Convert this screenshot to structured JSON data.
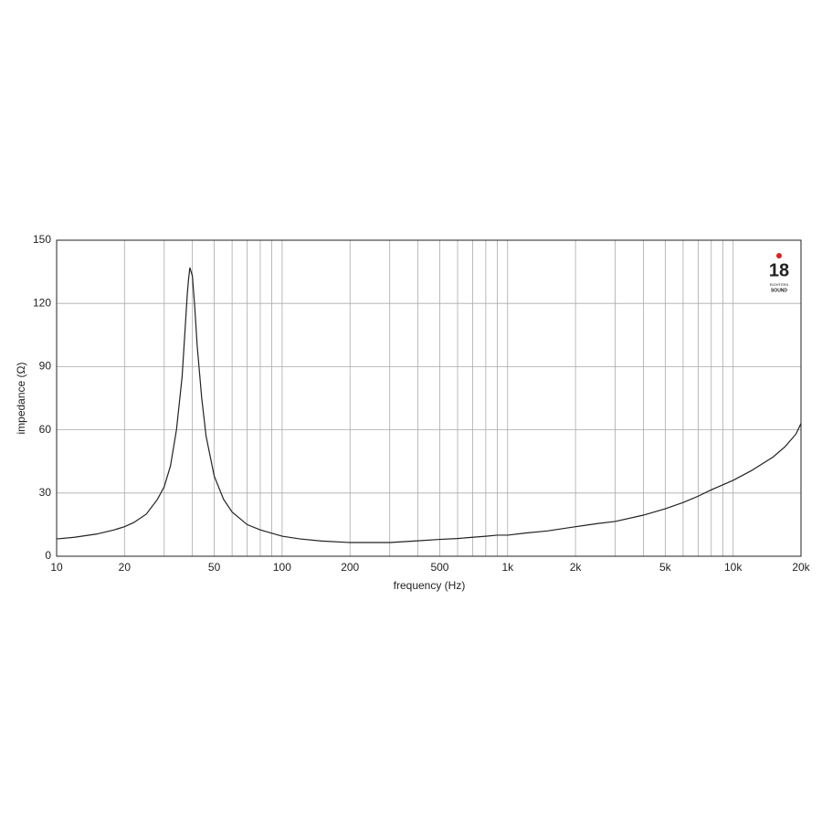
{
  "chart_data": {
    "type": "line",
    "x_label": "frequency (Hz)",
    "y_label": "impedance (Ω)",
    "x_scale": "log",
    "xlim": [
      10,
      20000
    ],
    "ylim": [
      0,
      150
    ],
    "xticks": [
      10,
      20,
      50,
      100,
      200,
      500,
      {
        "value": 1000,
        "label": "1k"
      },
      {
        "value": 2000,
        "label": "2k"
      },
      {
        "value": 5000,
        "label": "5k"
      },
      {
        "value": 10000,
        "label": "10k"
      },
      {
        "value": 20000,
        "label": "20k"
      }
    ],
    "x_minor_grid": [
      30,
      40,
      60,
      70,
      80,
      90,
      300,
      400,
      600,
      700,
      800,
      900,
      3000,
      4000,
      6000,
      7000,
      8000,
      9000
    ],
    "yticks": [
      0,
      30,
      60,
      90,
      120,
      150
    ],
    "grid": true,
    "logo": {
      "number": "18",
      "line1": "EIGHTEEN",
      "line2": "SOUND"
    },
    "x": [
      10,
      12,
      15,
      18,
      20,
      22,
      25,
      28,
      30,
      32,
      34,
      36,
      37,
      38,
      38.5,
      39,
      40,
      41,
      42,
      44,
      46,
      50,
      55,
      60,
      70,
      80,
      100,
      120,
      150,
      200,
      300,
      400,
      500,
      600,
      700,
      800,
      900,
      1000,
      1200,
      1500,
      2000,
      2500,
      3000,
      4000,
      5000,
      6000,
      7000,
      8000,
      10000,
      12000,
      15000,
      17000,
      19000,
      20000
    ],
    "series": [
      {
        "color": "#222222",
        "values": [
          8.2,
          9,
          10.5,
          12.5,
          14,
          16,
          20,
          27,
          33,
          43,
          60,
          85,
          105,
          125,
          132,
          137,
          133,
          118,
          100,
          75,
          57,
          38,
          27,
          21,
          15,
          12.5,
          9.5,
          8.2,
          7.2,
          6.5,
          6.5,
          7.3,
          8,
          8.4,
          9,
          9.5,
          10,
          10,
          11,
          12,
          14,
          15.5,
          16.5,
          19.5,
          22.5,
          25.5,
          28.5,
          31.5,
          36,
          40.5,
          47,
          52,
          58,
          63
        ]
      }
    ]
  }
}
